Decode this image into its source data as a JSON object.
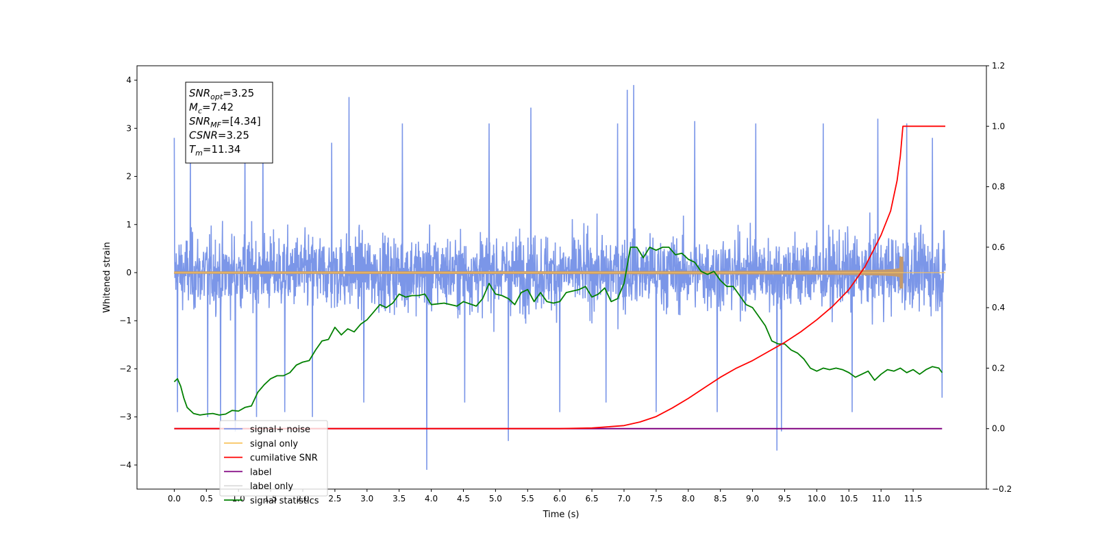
{
  "chart_data": {
    "type": "line",
    "title": "",
    "xlabel": "Time (s)",
    "ylabel": "Whitened strain",
    "y2label": "",
    "xlim": [
      -0.58,
      12.64
    ],
    "ylim": [
      -4.5,
      4.3
    ],
    "y2lim": [
      -0.2,
      1.2
    ],
    "x_ticks": [
      0.0,
      0.5,
      1.0,
      1.5,
      2.0,
      2.5,
      3.0,
      3.5,
      4.0,
      4.5,
      5.0,
      5.5,
      6.0,
      6.5,
      7.0,
      7.5,
      8.0,
      8.5,
      9.0,
      9.5,
      10.0,
      10.5,
      11.0,
      11.5
    ],
    "x_tick_labels": [
      "0.0",
      "0.5",
      "1.0",
      "1.5",
      "2.0",
      "2.5",
      "3.0",
      "3.5",
      "4.0",
      "4.5",
      "5.0",
      "5.5",
      "6.0",
      "6.5",
      "7.0",
      "7.5",
      "8.0",
      "8.5",
      "9.0",
      "9.5",
      "10.0",
      "10.5",
      "11.0",
      "11.5"
    ],
    "y_ticks": [
      -4,
      -3,
      -2,
      -1,
      0,
      1,
      2,
      3,
      4
    ],
    "y_tick_labels": [
      "−4",
      "−3",
      "−2",
      "−1",
      "0",
      "1",
      "2",
      "3",
      "4"
    ],
    "y2_ticks": [
      -0.2,
      0.0,
      0.2,
      0.4,
      0.6,
      0.8,
      1.0,
      1.2
    ],
    "y2_tick_labels": [
      "−0.2",
      "0.0",
      "0.2",
      "0.4",
      "0.6",
      "0.8",
      "1.0",
      "1.2"
    ],
    "grid": false,
    "legend_position": "lower-left",
    "info_box": [
      {
        "sym": "SNR",
        "sub": "opt",
        "val": "=3.25"
      },
      {
        "sym": "M",
        "sub": "c",
        "val": "=7.42"
      },
      {
        "sym": "SNR",
        "sub": "MF",
        "val": "=[4.34]"
      },
      {
        "sym": "CSNR",
        "sub": "",
        "val": "=3.25"
      },
      {
        "sym": "T",
        "sub": "m",
        "val": "=11.34"
      }
    ],
    "series": [
      {
        "name": "signal+ noise",
        "axis": "left",
        "color": "#7b96e8",
        "kind": "noise",
        "x_range": [
          0.0,
          12.0
        ],
        "baseline": [
          [
            0.0,
            0.0
          ],
          [
            12.0,
            0.0
          ]
        ],
        "envelope": 1.3,
        "spikes": [
          [
            0.0,
            2.8
          ],
          [
            0.05,
            -2.9
          ],
          [
            0.25,
            2.7
          ],
          [
            0.52,
            -3.0
          ],
          [
            0.72,
            -3.1
          ],
          [
            0.95,
            -3.3
          ],
          [
            1.1,
            3.1
          ],
          [
            1.28,
            -3.0
          ],
          [
            1.38,
            3.2
          ],
          [
            1.72,
            -2.9
          ],
          [
            2.15,
            -3.0
          ],
          [
            2.45,
            2.7
          ],
          [
            2.72,
            3.65
          ],
          [
            2.95,
            -2.7
          ],
          [
            3.55,
            3.1
          ],
          [
            3.93,
            -4.1
          ],
          [
            4.52,
            -2.7
          ],
          [
            4.9,
            3.1
          ],
          [
            5.2,
            -3.5
          ],
          [
            5.55,
            3.43
          ],
          [
            6.0,
            -2.9
          ],
          [
            6.72,
            -2.7
          ],
          [
            6.9,
            3.1
          ],
          [
            7.05,
            3.8
          ],
          [
            7.15,
            3.9
          ],
          [
            7.5,
            -2.9
          ],
          [
            8.1,
            3.15
          ],
          [
            8.45,
            -2.9
          ],
          [
            9.05,
            3.1
          ],
          [
            9.38,
            -3.7
          ],
          [
            9.45,
            -3.3
          ],
          [
            10.1,
            3.1
          ],
          [
            10.55,
            -2.9
          ],
          [
            10.95,
            3.2
          ],
          [
            11.4,
            3.1
          ],
          [
            11.8,
            2.8
          ],
          [
            11.95,
            -2.6
          ]
        ]
      },
      {
        "name": "signal only",
        "axis": "left",
        "color": "#f8c564",
        "kind": "chirp",
        "x_range": [
          0.0,
          12.0
        ],
        "peak_time": 11.34,
        "peak_amplitude": 0.33,
        "overlay_color": "#c49a6c"
      },
      {
        "name": "cumilative SNR",
        "axis": "right",
        "color": "#ff0000",
        "x": [
          0.0,
          6.0,
          6.5,
          7.0,
          7.25,
          7.5,
          7.75,
          8.0,
          8.25,
          8.5,
          8.75,
          9.0,
          9.25,
          9.5,
          9.75,
          10.0,
          10.25,
          10.5,
          10.75,
          11.0,
          11.15,
          11.25,
          11.3,
          11.34,
          12.0
        ],
        "y": [
          0.0,
          0.0,
          0.002,
          0.01,
          0.022,
          0.04,
          0.068,
          0.1,
          0.135,
          0.17,
          0.2,
          0.225,
          0.255,
          0.285,
          0.32,
          0.36,
          0.405,
          0.46,
          0.535,
          0.64,
          0.72,
          0.82,
          0.9,
          1.0,
          1.0
        ]
      },
      {
        "name": "label",
        "axis": "right",
        "color": "#800080",
        "x": [
          0.0,
          11.95
        ],
        "y": [
          0.0,
          0.0
        ]
      },
      {
        "name": "label only",
        "axis": "right",
        "color": "#dddddd",
        "hidden_in_plot": true,
        "x": [],
        "y": []
      },
      {
        "name": "signal statistics",
        "axis": "right",
        "color": "#008000",
        "x": [
          0.0,
          0.05,
          0.1,
          0.15,
          0.2,
          0.3,
          0.4,
          0.5,
          0.6,
          0.7,
          0.8,
          0.9,
          1.0,
          1.1,
          1.2,
          1.3,
          1.4,
          1.5,
          1.6,
          1.7,
          1.8,
          1.9,
          2.0,
          2.1,
          2.2,
          2.3,
          2.4,
          2.5,
          2.6,
          2.7,
          2.8,
          2.9,
          3.0,
          3.1,
          3.2,
          3.3,
          3.4,
          3.5,
          3.6,
          3.7,
          3.8,
          3.9,
          4.0,
          4.2,
          4.4,
          4.5,
          4.7,
          4.8,
          4.9,
          5.0,
          5.1,
          5.2,
          5.3,
          5.4,
          5.5,
          5.6,
          5.7,
          5.8,
          5.9,
          6.0,
          6.1,
          6.2,
          6.3,
          6.4,
          6.5,
          6.6,
          6.7,
          6.8,
          6.9,
          7.0,
          7.1,
          7.2,
          7.3,
          7.4,
          7.5,
          7.6,
          7.7,
          7.8,
          7.9,
          8.0,
          8.1,
          8.2,
          8.3,
          8.4,
          8.5,
          8.6,
          8.7,
          8.8,
          8.9,
          9.0,
          9.1,
          9.2,
          9.3,
          9.4,
          9.5,
          9.6,
          9.7,
          9.8,
          9.9,
          10.0,
          10.1,
          10.2,
          10.3,
          10.4,
          10.5,
          10.6,
          10.7,
          10.8,
          10.9,
          11.0,
          11.1,
          11.2,
          11.3,
          11.4,
          11.5,
          11.6,
          11.7,
          11.8,
          11.9,
          11.95
        ],
        "y": [
          0.155,
          0.165,
          0.14,
          0.1,
          0.07,
          0.05,
          0.045,
          0.048,
          0.05,
          0.045,
          0.048,
          0.06,
          0.058,
          0.07,
          0.075,
          0.12,
          0.145,
          0.165,
          0.175,
          0.175,
          0.185,
          0.21,
          0.22,
          0.225,
          0.26,
          0.29,
          0.295,
          0.335,
          0.31,
          0.33,
          0.32,
          0.345,
          0.36,
          0.385,
          0.41,
          0.4,
          0.415,
          0.445,
          0.435,
          0.44,
          0.44,
          0.445,
          0.41,
          0.415,
          0.405,
          0.42,
          0.405,
          0.43,
          0.48,
          0.445,
          0.44,
          0.43,
          0.41,
          0.45,
          0.46,
          0.42,
          0.45,
          0.42,
          0.415,
          0.42,
          0.45,
          0.455,
          0.46,
          0.47,
          0.435,
          0.445,
          0.465,
          0.42,
          0.43,
          0.48,
          0.6,
          0.6,
          0.565,
          0.6,
          0.59,
          0.6,
          0.6,
          0.575,
          0.58,
          0.56,
          0.55,
          0.52,
          0.51,
          0.52,
          0.49,
          0.47,
          0.47,
          0.44,
          0.41,
          0.4,
          0.37,
          0.34,
          0.29,
          0.28,
          0.28,
          0.26,
          0.25,
          0.23,
          0.2,
          0.19,
          0.2,
          0.195,
          0.2,
          0.195,
          0.185,
          0.17,
          0.18,
          0.19,
          0.16,
          0.18,
          0.195,
          0.19,
          0.2,
          0.185,
          0.195,
          0.18,
          0.195,
          0.205,
          0.2,
          0.185
        ]
      }
    ]
  }
}
